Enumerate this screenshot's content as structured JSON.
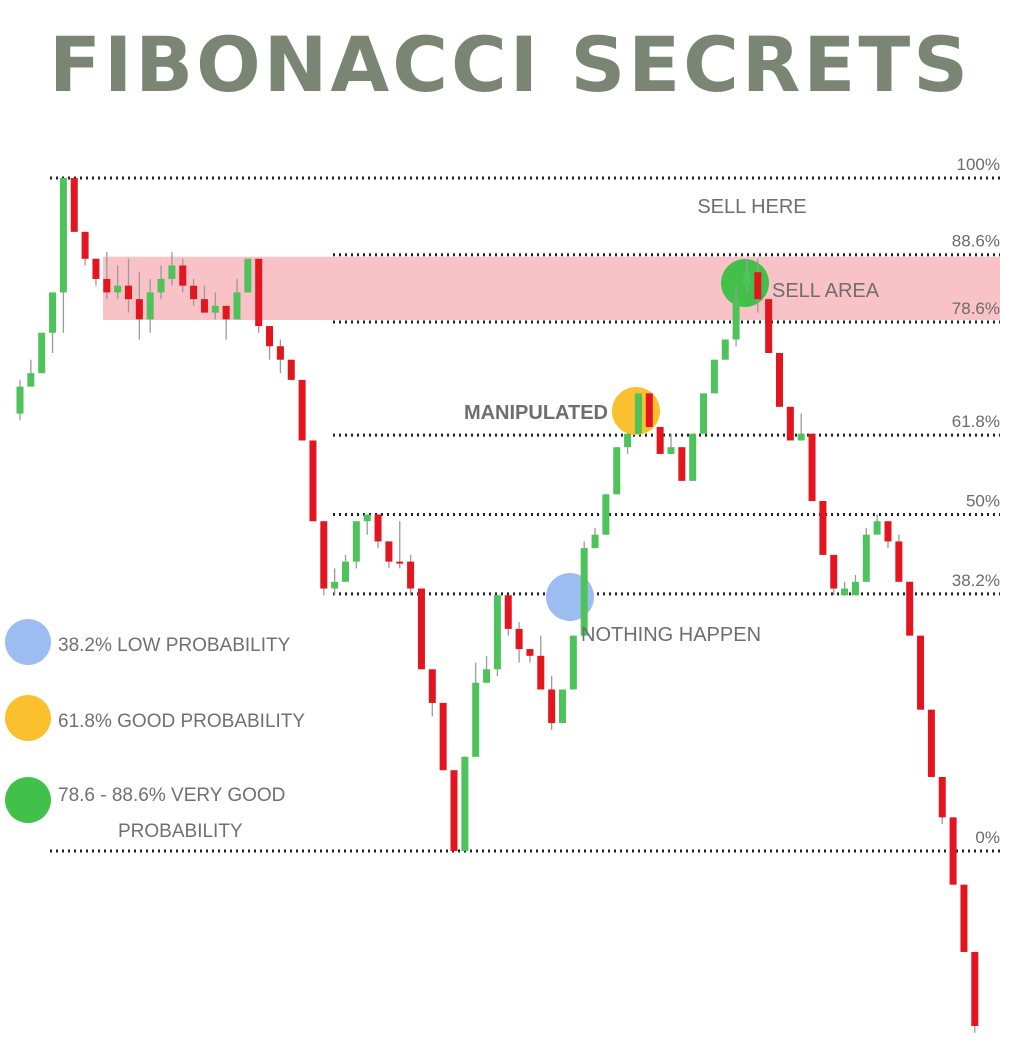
{
  "title": "FIBONACCI SECRETS",
  "colors": {
    "title": "#7a8574",
    "bull": "#4ec25b",
    "bear": "#e3151e",
    "zone": "#f7b3b8",
    "blue_dot": "#9dbcf2",
    "yellow_dot": "#fbc02d",
    "green_dot": "#42c14a",
    "text": "#6e6e6e"
  },
  "chart_data": {
    "type": "candlestick",
    "title": "FIBONACCI SECRETS",
    "levels": [
      {
        "label": "100%",
        "value": 100
      },
      {
        "label": "88.6%",
        "value": 88.6
      },
      {
        "label": "78.6%",
        "value": 78.6
      },
      {
        "label": "61.8%",
        "value": 61.8
      },
      {
        "label": "50%",
        "value": 50
      },
      {
        "label": "38.2%",
        "value": 38.2
      },
      {
        "label": "0%",
        "value": 0
      }
    ],
    "zone": {
      "from": 78.6,
      "to": 88.6
    },
    "candles": [
      [
        65,
        69,
        64,
        70,
        1
      ],
      [
        69,
        71,
        70,
        73,
        1
      ],
      [
        71,
        77,
        71,
        77,
        1
      ],
      [
        77,
        83,
        74,
        83,
        1
      ],
      [
        83,
        100,
        77,
        100,
        1
      ],
      [
        100,
        92,
        92,
        100,
        0
      ],
      [
        92,
        88,
        87,
        92,
        0
      ],
      [
        88,
        85,
        84,
        88,
        0
      ],
      [
        85,
        83,
        82,
        89,
        0
      ],
      [
        83,
        84,
        82,
        87,
        1
      ],
      [
        84,
        82,
        80,
        88,
        0
      ],
      [
        82,
        79,
        76,
        86,
        0
      ],
      [
        79,
        83,
        77,
        85,
        1
      ],
      [
        83,
        85,
        82,
        87,
        1
      ],
      [
        85,
        87,
        84,
        89,
        1
      ],
      [
        87,
        84,
        83,
        88,
        0
      ],
      [
        84,
        82,
        81,
        85,
        0
      ],
      [
        82,
        80,
        80,
        84,
        0
      ],
      [
        80,
        81,
        79,
        83,
        1
      ],
      [
        81,
        79,
        76,
        81,
        0
      ],
      [
        79,
        83,
        79,
        85,
        1
      ],
      [
        83,
        88,
        83,
        88,
        1
      ],
      [
        88,
        78,
        77,
        88,
        0
      ],
      [
        78,
        75,
        73,
        78,
        0
      ],
      [
        75,
        73,
        71,
        76,
        0
      ],
      [
        73,
        70,
        70,
        73,
        0
      ],
      [
        70,
        61,
        61,
        70,
        0
      ],
      [
        61,
        49,
        49,
        61,
        0
      ],
      [
        49,
        39,
        38,
        49,
        0
      ],
      [
        39,
        40,
        38,
        42,
        1
      ],
      [
        40,
        43,
        40,
        44,
        1
      ],
      [
        43,
        49,
        42,
        49,
        1
      ],
      [
        49,
        50,
        47,
        50,
        1
      ],
      [
        50,
        46,
        45,
        50,
        0
      ],
      [
        46,
        43,
        42,
        46,
        0
      ],
      [
        43,
        43,
        42,
        49,
        0
      ],
      [
        43,
        39,
        38,
        44,
        0
      ],
      [
        39,
        27,
        27,
        39,
        0
      ],
      [
        27,
        22,
        20,
        27,
        0
      ],
      [
        22,
        12,
        12,
        22,
        0
      ],
      [
        12,
        0,
        0,
        12,
        0
      ],
      [
        0,
        14,
        0,
        14,
        1
      ],
      [
        14,
        25,
        14,
        28,
        1
      ],
      [
        25,
        27,
        25,
        29,
        1
      ],
      [
        27,
        38,
        26,
        38,
        1
      ],
      [
        38,
        33,
        32,
        38,
        0
      ],
      [
        33,
        30,
        28,
        34,
        0
      ],
      [
        30,
        29,
        28,
        30,
        0
      ],
      [
        29,
        24,
        24,
        32,
        0
      ],
      [
        24,
        19,
        18,
        26,
        0
      ],
      [
        19,
        24,
        19,
        24,
        1
      ],
      [
        24,
        32,
        24,
        32,
        1
      ],
      [
        32,
        45,
        32,
        46,
        1
      ],
      [
        45,
        47,
        45,
        48,
        1
      ],
      [
        47,
        53,
        47,
        53,
        1
      ],
      [
        53,
        60,
        53,
        60,
        1
      ],
      [
        60,
        62,
        59,
        62,
        1
      ],
      [
        62,
        68,
        62,
        68,
        1
      ],
      [
        68,
        63,
        63,
        68,
        0
      ],
      [
        63,
        59,
        59,
        63,
        0
      ],
      [
        59,
        60,
        59,
        62,
        1
      ],
      [
        60,
        55,
        55,
        60,
        0
      ],
      [
        55,
        62,
        55,
        62,
        1
      ],
      [
        62,
        68,
        62,
        68,
        1
      ],
      [
        68,
        73,
        68,
        73,
        1
      ],
      [
        73,
        76,
        73,
        76,
        1
      ],
      [
        76,
        82,
        75,
        84,
        1
      ],
      [
        84,
        86,
        83,
        88,
        1
      ],
      [
        86,
        82,
        80,
        88,
        0
      ],
      [
        82,
        74,
        74,
        82,
        0
      ],
      [
        74,
        66,
        66,
        74,
        0
      ],
      [
        66,
        61,
        61,
        66,
        0
      ],
      [
        61,
        62,
        61,
        65,
        1
      ],
      [
        62,
        52,
        52,
        62,
        0
      ],
      [
        52,
        44,
        44,
        52,
        0
      ],
      [
        44,
        39,
        38,
        44,
        0
      ],
      [
        39,
        38,
        38,
        40,
        1
      ],
      [
        38,
        40,
        38,
        41,
        1
      ],
      [
        40,
        47,
        40,
        48,
        1
      ],
      [
        47,
        49,
        47,
        50,
        1
      ],
      [
        49,
        46,
        45,
        49,
        0
      ],
      [
        46,
        40,
        40,
        47,
        0
      ],
      [
        40,
        32,
        32,
        40,
        0
      ],
      [
        32,
        21,
        21,
        32,
        0
      ],
      [
        21,
        11,
        11,
        21,
        0
      ],
      [
        11,
        5,
        4,
        11,
        0
      ],
      [
        5,
        -5,
        -5,
        5,
        0
      ],
      [
        -5,
        -15,
        -15,
        -5,
        0
      ],
      [
        -15,
        -26,
        -27,
        -15,
        0
      ]
    ],
    "candle_fields": [
      "open",
      "close",
      "low",
      "high",
      "bullish"
    ]
  },
  "annotations": {
    "sell_here": "SELL HERE",
    "sell_area": "SELL AREA",
    "manipulated": "MANIPULATED",
    "nothing_happen": "NOTHING HAPPEN"
  },
  "legend": [
    {
      "color": "#9dbcf2",
      "lines": [
        "38.2% LOW PROBABILITY"
      ]
    },
    {
      "color": "#fbc02d",
      "lines": [
        "61.8% GOOD PROBABILITY"
      ]
    },
    {
      "color": "#42c14a",
      "lines": [
        "78.6 - 88.6% VERY GOOD",
        "PROBABILITY"
      ]
    }
  ]
}
